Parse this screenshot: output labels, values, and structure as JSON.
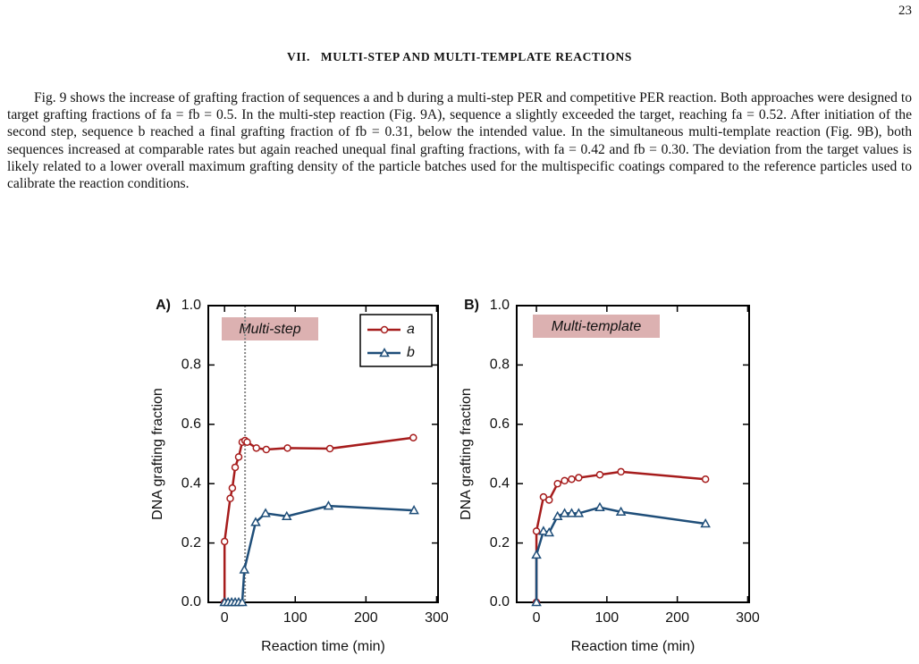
{
  "page_number": "23",
  "heading": "VII.   MULTI-STEP AND MULTI-TEMPLATE REACTIONS",
  "paragraph": "Fig. 9 shows the increase of grafting fraction of sequences a and b during a multi-step PER and competitive PER reaction. Both approaches were designed to target grafting fractions of fa = fb = 0.5. In the multi-step reaction (Fig. 9A), sequence a slightly exceeded the target, reaching fa = 0.52. After initiation of the second step, sequence b reached a final grafting fraction of fb = 0.31, below the intended value. In the simultaneous multi-template reaction (Fig. 9B), both sequences increased at comparable rates but again reached unequal final grafting fractions, with fa = 0.42 and fb = 0.30. The deviation from the target values is likely related to a lower overall maximum grafting density of the particle batches used for the multispecific coatings compared to the reference particles used to calibrate the reaction conditions.",
  "chart_data": [
    {
      "type": "line",
      "panel_label": "A)",
      "annotation": "Multi-step",
      "xlabel": "Reaction time (min)",
      "ylabel": "DNA grafting fraction",
      "xlim": [
        -23,
        302
      ],
      "ylim": [
        0,
        1
      ],
      "xticks": [
        0,
        100,
        200,
        300
      ],
      "yticks": [
        {
          "value": 0,
          "label": "0.0"
        },
        0.2,
        0.4,
        0.6,
        0.8,
        {
          "value": 1,
          "label": "1.0"
        }
      ],
      "vlines": [
        29
      ],
      "legend": "upper right",
      "series": [
        {
          "name": "a",
          "color": "#a61c1c",
          "marker": "circle",
          "x": [
            0,
            0,
            8,
            11,
            15,
            20,
            25,
            29,
            32,
            45,
            59,
            89,
            149,
            267
          ],
          "values": [
            0,
            0.205,
            0.35,
            0.385,
            0.455,
            0.49,
            0.54,
            0.545,
            0.54,
            0.52,
            0.515,
            0.52,
            0.518,
            0.555
          ]
        },
        {
          "name": "b",
          "color": "#1f4e79",
          "marker": "triangle",
          "x": [
            0,
            5,
            10,
            15,
            20,
            25,
            28,
            44,
            58,
            88,
            147,
            268
          ],
          "values": [
            0,
            0,
            0,
            0,
            0,
            0,
            0.11,
            0.27,
            0.3,
            0.29,
            0.325,
            0.31
          ]
        }
      ]
    },
    {
      "type": "line",
      "panel_label": "B)",
      "annotation": "Multi-template",
      "xlabel": "Reaction time (min)",
      "ylabel": "DNA grafting fraction",
      "xlim": [
        -28,
        302
      ],
      "ylim": [
        0,
        1
      ],
      "xticks": [
        0,
        100,
        200,
        300
      ],
      "yticks": [
        {
          "value": 0,
          "label": "0.0"
        },
        0.2,
        0.4,
        0.6,
        0.8,
        {
          "value": 1,
          "label": "1.0"
        }
      ],
      "series": [
        {
          "color": "#a61c1c",
          "marker": "circle",
          "x": [
            0,
            0,
            10,
            18,
            30,
            40,
            50,
            60,
            90,
            120,
            240
          ],
          "values": [
            0,
            0.24,
            0.355,
            0.345,
            0.4,
            0.41,
            0.415,
            0.42,
            0.43,
            0.44,
            0.415
          ]
        },
        {
          "color": "#1f4e79",
          "marker": "triangle",
          "x": [
            0,
            0,
            10,
            18,
            30,
            40,
            50,
            60,
            90,
            120,
            240
          ],
          "values": [
            0,
            0.16,
            0.24,
            0.235,
            0.29,
            0.3,
            0.3,
            0.3,
            0.32,
            0.305,
            0.265
          ]
        }
      ]
    }
  ]
}
